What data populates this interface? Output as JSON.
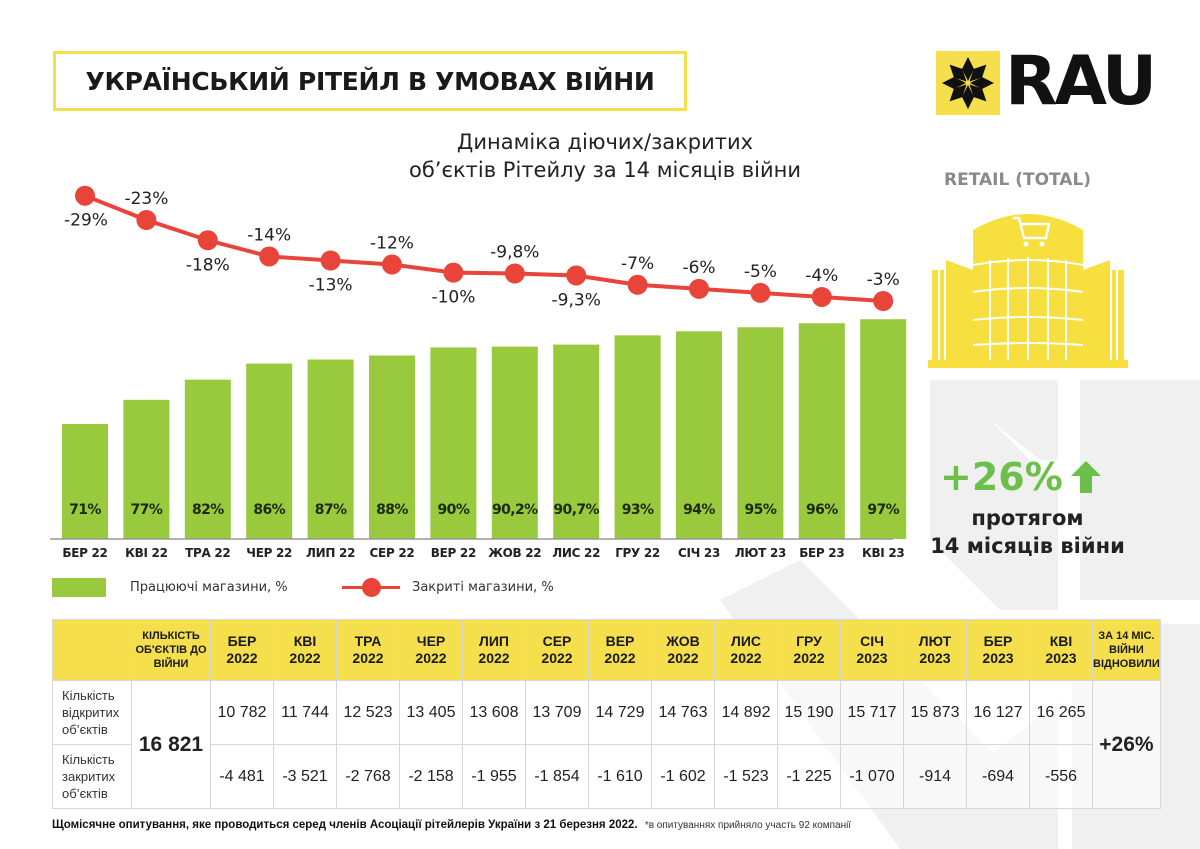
{
  "header": {
    "title": "УКРАЇНСЬКИЙ РІТЕЙЛ В УМОВАХ ВІЙНИ",
    "subtitle_line1": "Динаміка діючих/закритих",
    "subtitle_line2": "об’єктів Рітейлу за 14 місяців війни",
    "logo_text": "RAU",
    "logo_icon": "star-ornament-icon"
  },
  "side_panel": {
    "category_label": "RETAIL (TOTAL)",
    "building_icon": "shopping-mall-cart-icon",
    "growth_value": "+26%",
    "growth_icon": "arrow-up-icon",
    "growth_caption_line1": "протягом",
    "growth_caption_line2": "14 місяців війни"
  },
  "colors": {
    "accent_yellow": "#f5df4d",
    "bar_green": "#99c93c",
    "line_red": "#e8443a",
    "highlight_green": "#6cc04a"
  },
  "chart_data": {
    "type": "bar+line",
    "title": "Динаміка діючих/закритих об’єктів Рітейлу за 14 місяців війни",
    "categories": [
      "БЕР 22",
      "КВІ 22",
      "ТРА 22",
      "ЧЕР 22",
      "ЛИП 22",
      "СЕР 22",
      "ВЕР 22",
      "ЖОВ 22",
      "ЛИС 22",
      "ГРУ 22",
      "СІЧ 23",
      "ЛЮТ 23",
      "БЕР 23",
      "КВІ 23"
    ],
    "series": [
      {
        "name": "Працюючі магазини, %",
        "kind": "bar",
        "values": [
          71,
          77,
          82,
          86,
          87,
          88,
          90,
          90.2,
          90.7,
          93,
          94,
          95,
          96,
          97
        ],
        "labels": [
          "71%",
          "77%",
          "82%",
          "86%",
          "87%",
          "88%",
          "90%",
          "90,2%",
          "90,7%",
          "93%",
          "94%",
          "95%",
          "96%",
          "97%"
        ]
      },
      {
        "name": "Закриті магазини, %",
        "kind": "line",
        "values": [
          -29,
          -23,
          -18,
          -14,
          -13,
          -12,
          -10,
          -9.8,
          -9.3,
          -7,
          -6,
          -5,
          -4,
          -3
        ],
        "labels": [
          "-29%",
          "-23%",
          "-18%",
          "-14%",
          "-13%",
          "-12%",
          "-10%",
          "-9,8%",
          "-9,3%",
          "-7%",
          "-6%",
          "-5%",
          "-4%",
          "-3%"
        ]
      }
    ],
    "xlabel": "",
    "ylabel": "",
    "grid": false,
    "legend_position": "bottom-left"
  },
  "legend": {
    "bar_label": "Працюючі магазини, %",
    "line_label": "Закриті магазини, %"
  },
  "table": {
    "pre_war_header": "КІЛЬКІСТЬ ОБ'ЄКТІВ ДО ВІЙНИ",
    "final_header": "ЗА 14 МІС. ВІЙНИ ВІДНОВИЛИ",
    "months": [
      {
        "m": "БЕР",
        "y": "2022"
      },
      {
        "m": "КВІ",
        "y": "2022"
      },
      {
        "m": "ТРА",
        "y": "2022"
      },
      {
        "m": "ЧЕР",
        "y": "2022"
      },
      {
        "m": "ЛИП",
        "y": "2022"
      },
      {
        "m": "СЕР",
        "y": "2022"
      },
      {
        "m": "ВЕР",
        "y": "2022"
      },
      {
        "m": "ЖОВ",
        "y": "2022"
      },
      {
        "m": "ЛИС",
        "y": "2022"
      },
      {
        "m": "ГРУ",
        "y": "2022"
      },
      {
        "m": "СІЧ",
        "y": "2023"
      },
      {
        "m": "ЛЮТ",
        "y": "2023"
      },
      {
        "m": "БЕР",
        "y": "2023"
      },
      {
        "m": "КВІ",
        "y": "2023"
      }
    ],
    "row_open_label": "Кількість відкритих об’єктів",
    "row_closed_label": "Кількість закритих об’єктів",
    "pre_war_value": "16 821",
    "open": [
      "10 782",
      "11 744",
      "12 523",
      "13 405",
      "13 608",
      "13 709",
      "14 729",
      "14 763",
      "14 892",
      "15 190",
      "15 717",
      "15 873",
      "16 127",
      "16 265"
    ],
    "closed": [
      "-4 481",
      "-3 521",
      "-2 768",
      "-2 158",
      "-1 955",
      "-1 854",
      "-1 610",
      "-1 602",
      "-1 523",
      "-1 225",
      "-1 070",
      "-914",
      "-694",
      "-556"
    ],
    "final_value": "+26%"
  },
  "footer": {
    "main": "Щомісячне опитування, яке проводиться серед членів Асоціації рітейлерів України з 21 березня 2022.",
    "note": "*в опитуваннях прийняло участь 92 компанії"
  }
}
